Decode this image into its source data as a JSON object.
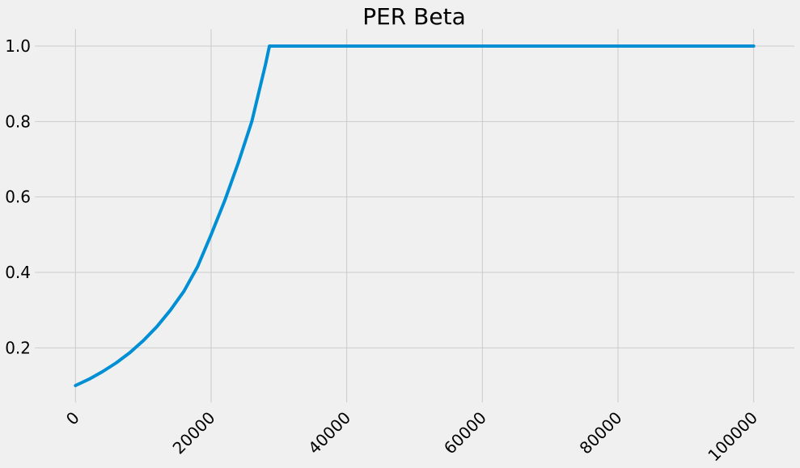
{
  "chart_data": {
    "type": "line",
    "title": "PER Beta",
    "xlabel": "",
    "ylabel": "",
    "xlim": [
      -6000,
      106000
    ],
    "ylim": [
      0.055,
      1.045
    ],
    "xticks": [
      0,
      20000,
      40000,
      60000,
      80000,
      100000
    ],
    "xtick_labels": [
      "0",
      "20000",
      "40000",
      "60000",
      "80000",
      "100000"
    ],
    "yticks": [
      0.2,
      0.4,
      0.6,
      0.8,
      1.0
    ],
    "ytick_labels": [
      "0.2",
      "0.4",
      "0.6",
      "0.8",
      "1.0"
    ],
    "grid": true,
    "series": [
      {
        "color": "#008fd5",
        "x": [
          0,
          2000,
          4000,
          6000,
          8000,
          10000,
          12000,
          14000,
          16000,
          18000,
          20000,
          22000,
          24000,
          26000,
          28000,
          28600,
          30000,
          40000,
          50000,
          60000,
          70000,
          80000,
          90000,
          100000
        ],
        "y": [
          0.1,
          0.117,
          0.137,
          0.16,
          0.187,
          0.219,
          0.256,
          0.3,
          0.35,
          0.415,
          0.5,
          0.59,
          0.69,
          0.8,
          0.95,
          1.0,
          1.0,
          1.0,
          1.0,
          1.0,
          1.0,
          1.0,
          1.0,
          1.0
        ]
      }
    ]
  }
}
